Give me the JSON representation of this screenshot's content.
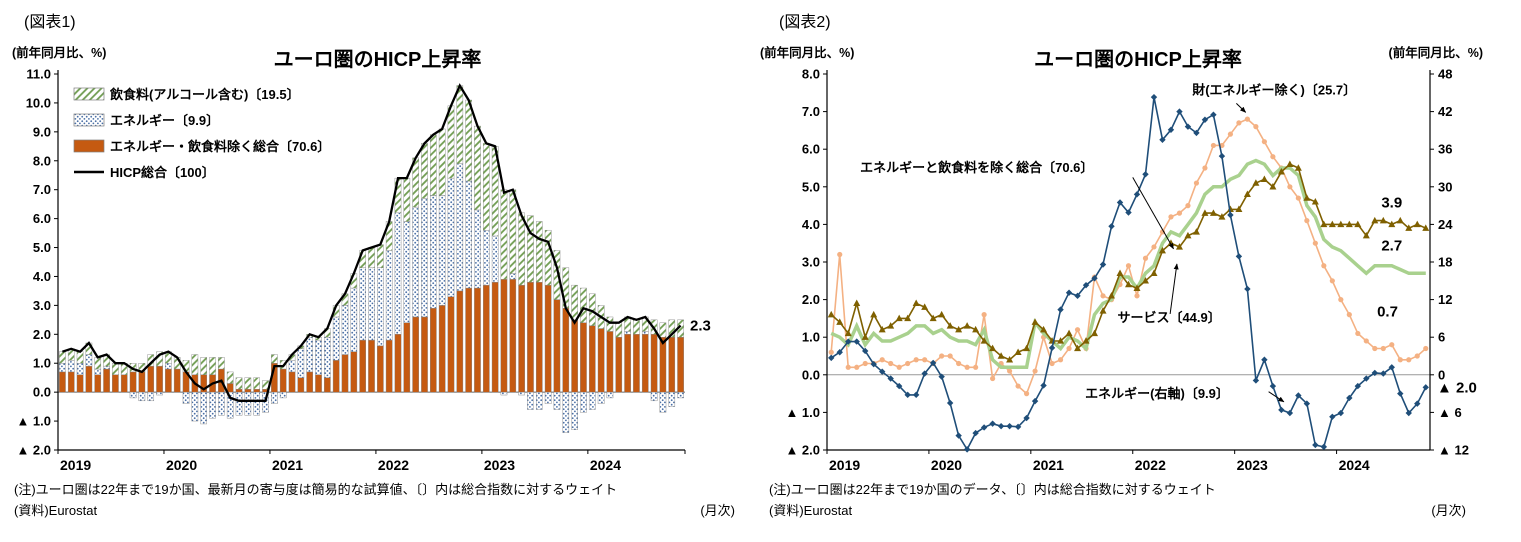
{
  "fig1": {
    "heading": "(図表1)",
    "axis_unit_left": "(前年同月比、%)",
    "note": "(注)ユーロ圏は22年まで19か国、最新月の寄与度は簡易的な試算値、〔〕内は総合指数に対するウェイト",
    "source": "(資料)Eurostat",
    "freq": "(月次)"
  },
  "fig2": {
    "heading": "(図表2)",
    "axis_unit_left": "(前年同月比、%)",
    "axis_unit_right": "(前年同月比、%)",
    "note": "(注)ユーロ圏は22年まで19か国のデータ、〔〕内は総合指数に対するウェイト",
    "source": "(資料)Eurostat",
    "freq": "(月次)"
  },
  "chart_data": [
    {
      "id": "fig1",
      "type": "bar",
      "subtype": "stacked-contribution-bars-with-line",
      "title": "ユーロ圏のHICP上昇率",
      "x_monthly_start": "2019-01",
      "x_monthly_end": "2024-11",
      "year_labels": [
        "2019",
        "2020",
        "2021",
        "2022",
        "2023",
        "2024"
      ],
      "ylim": [
        -2.0,
        11.0
      ],
      "ytick_step": 1.0,
      "grid": false,
      "legend_position": "inside-top-left",
      "end_label": "2.3",
      "end_label_value": 2.3,
      "stack_order": [
        2,
        1,
        0
      ],
      "line_series": 3,
      "colors": {
        "food_hatch": "#6f9c50",
        "energy_dots": "#4a6fa5",
        "core_bar": "#c55a11",
        "hicp_line": "#000000",
        "bar_border": "#7f7f7f"
      },
      "series": [
        {
          "name": "飲食料(アルコール含む)〔19.5〕",
          "role": "bar",
          "fill": "hatch",
          "values": [
            0.4,
            0.4,
            0.4,
            0.4,
            0.4,
            0.4,
            0.4,
            0.4,
            0.3,
            0.3,
            0.4,
            0.5,
            0.4,
            0.4,
            0.4,
            0.7,
            0.6,
            0.6,
            0.4,
            0.4,
            0.4,
            0.4,
            0.4,
            0.3,
            0.3,
            0.3,
            0.2,
            0.1,
            0.1,
            0.1,
            0.3,
            0.4,
            0.4,
            0.5,
            0.6,
            0.7,
            0.8,
            1.0,
            1.2,
            1.5,
            1.7,
            1.9,
            2.1,
            2.3,
            2.5,
            2.7,
            2.8,
            2.9,
            3.0,
            3.1,
            3.1,
            2.9,
            2.5,
            2.3,
            2.1,
            1.9,
            1.7,
            1.4,
            1.2,
            1.2,
            1.1,
            0.8,
            0.5,
            0.5,
            0.5,
            0.5,
            0.5,
            0.5,
            0.5,
            0.6,
            0.6
          ]
        },
        {
          "name": "エネルギー〔9.9〕",
          "role": "bar",
          "fill": "dots",
          "values": [
            0.3,
            0.4,
            0.4,
            0.4,
            0.2,
            0.1,
            0.0,
            0.0,
            -0.2,
            -0.3,
            -0.3,
            -0.1,
            0.2,
            0.0,
            -0.4,
            -1.0,
            -1.1,
            -0.9,
            -0.8,
            -0.9,
            -0.8,
            -0.8,
            -0.8,
            -0.7,
            -0.4,
            -0.2,
            0.4,
            1.0,
            1.2,
            1.2,
            1.4,
            1.5,
            1.7,
            2.2,
            2.5,
            2.5,
            2.7,
            3.1,
            4.2,
            3.5,
            3.8,
            4.1,
            3.9,
            3.8,
            4.1,
            4.4,
            3.7,
            2.7,
            1.9,
            1.6,
            -0.1,
            0.2,
            -0.1,
            -0.6,
            -0.6,
            -0.4,
            -0.6,
            -1.4,
            -1.3,
            -0.7,
            -0.6,
            -0.4,
            -0.2,
            0.0,
            0.1,
            0.0,
            0.1,
            -0.3,
            -0.7,
            -0.5,
            -0.2
          ]
        },
        {
          "name": "エネルギー・飲食料除く総合〔70.6〕",
          "role": "bar",
          "fill": "solid",
          "values": [
            0.7,
            0.7,
            0.6,
            0.9,
            0.6,
            0.8,
            0.6,
            0.6,
            0.7,
            0.7,
            0.9,
            0.9,
            0.8,
            0.8,
            0.7,
            0.6,
            0.6,
            0.6,
            0.8,
            0.3,
            0.1,
            0.1,
            0.1,
            0.1,
            1.0,
            0.8,
            0.7,
            0.5,
            0.7,
            0.6,
            0.5,
            1.1,
            1.3,
            1.4,
            1.8,
            1.8,
            1.6,
            1.8,
            2.0,
            2.4,
            2.6,
            2.6,
            2.9,
            3.0,
            3.3,
            3.5,
            3.6,
            3.6,
            3.7,
            3.8,
            3.9,
            3.9,
            3.7,
            3.8,
            3.8,
            3.7,
            3.2,
            2.9,
            2.5,
            2.4,
            2.3,
            2.2,
            2.1,
            1.9,
            2.0,
            2.0,
            2.0,
            2.0,
            1.9,
            1.9,
            1.9
          ]
        },
        {
          "name": "HICP総合〔100〕",
          "role": "line",
          "fill": "line",
          "values": [
            1.4,
            1.5,
            1.4,
            1.7,
            1.2,
            1.3,
            1.0,
            1.0,
            0.8,
            0.7,
            1.0,
            1.3,
            1.4,
            1.2,
            0.7,
            0.3,
            0.1,
            0.3,
            0.4,
            -0.2,
            -0.3,
            -0.3,
            -0.3,
            -0.3,
            0.9,
            0.9,
            1.3,
            1.6,
            2.0,
            1.9,
            2.2,
            3.0,
            3.4,
            4.1,
            4.9,
            5.0,
            5.1,
            5.9,
            7.4,
            7.4,
            8.1,
            8.6,
            8.9,
            9.1,
            9.9,
            10.6,
            10.1,
            9.2,
            8.6,
            8.5,
            6.9,
            7.0,
            6.1,
            5.5,
            5.3,
            5.2,
            4.3,
            2.9,
            2.4,
            2.9,
            2.8,
            2.6,
            2.4,
            2.4,
            2.6,
            2.5,
            2.6,
            2.2,
            1.7,
            2.0,
            2.3
          ]
        }
      ]
    },
    {
      "id": "fig2",
      "type": "line",
      "title": "ユーロ圏のHICP上昇率",
      "x_monthly_start": "2019-01",
      "x_monthly_end": "2024-11",
      "year_labels": [
        "2019",
        "2020",
        "2021",
        "2022",
        "2023",
        "2024"
      ],
      "ylim_left": [
        -2.0,
        8.0
      ],
      "ytick_step_left": 1.0,
      "ylim_right": [
        -12,
        48
      ],
      "ytick_step_right": 6,
      "right_to_left_ratio": 6,
      "grid": false,
      "series": [
        {
          "name": "財(エネルギー除く)〔25.7〕",
          "color": "#f4b183",
          "width": 1.6,
          "marker": "circle",
          "axis": "left",
          "values": [
            0.6,
            3.2,
            0.2,
            0.2,
            0.3,
            0.3,
            0.4,
            0.3,
            0.2,
            0.3,
            0.4,
            0.4,
            0.3,
            0.5,
            0.5,
            0.3,
            0.2,
            0.2,
            1.6,
            -0.1,
            0.3,
            0.1,
            -0.3,
            -0.5,
            0.1,
            1.0,
            0.3,
            0.4,
            0.7,
            1.2,
            0.7,
            2.6,
            2.1,
            2.0,
            2.4,
            2.9,
            2.1,
            3.1,
            3.4,
            3.8,
            4.2,
            4.3,
            4.5,
            5.1,
            5.5,
            6.1,
            6.1,
            6.4,
            6.7,
            6.8,
            6.6,
            6.2,
            5.8,
            5.5,
            5.0,
            4.7,
            4.1,
            3.5,
            2.9,
            2.5,
            2.0,
            1.6,
            1.1,
            0.9,
            0.7,
            0.7,
            0.8,
            0.4,
            0.4,
            0.5,
            0.7
          ]
        },
        {
          "name": "エネルギーと飲食料を除く総合〔70.6〕",
          "color": "#a9d18e",
          "width": 3.5,
          "marker": "none",
          "axis": "left",
          "values": [
            1.1,
            1.0,
            0.8,
            1.3,
            0.8,
            1.1,
            0.9,
            0.9,
            1.0,
            1.1,
            1.3,
            1.3,
            1.1,
            1.2,
            1.0,
            0.9,
            0.9,
            0.8,
            1.2,
            0.4,
            0.2,
            0.2,
            0.2,
            0.2,
            1.4,
            1.1,
            0.9,
            0.7,
            1.0,
            0.9,
            0.7,
            1.6,
            1.9,
            2.0,
            2.6,
            2.6,
            2.3,
            2.7,
            2.9,
            3.5,
            3.8,
            3.7,
            4.0,
            4.3,
            4.8,
            5.0,
            5.0,
            5.2,
            5.3,
            5.6,
            5.7,
            5.6,
            5.3,
            5.5,
            5.5,
            5.3,
            4.5,
            4.2,
            3.6,
            3.4,
            3.3,
            3.1,
            2.9,
            2.7,
            2.9,
            2.9,
            2.9,
            2.8,
            2.7,
            2.7,
            2.7
          ]
        },
        {
          "name": "サービス〔44.9〕",
          "color": "#7f6000",
          "width": 1.6,
          "marker": "triangle",
          "axis": "left",
          "values": [
            1.6,
            1.4,
            1.1,
            1.9,
            1.0,
            1.6,
            1.2,
            1.3,
            1.5,
            1.5,
            1.9,
            1.8,
            1.5,
            1.6,
            1.3,
            1.2,
            1.3,
            1.2,
            0.9,
            0.7,
            0.5,
            0.4,
            0.6,
            0.7,
            1.4,
            1.2,
            0.9,
            0.9,
            1.1,
            0.7,
            0.9,
            1.1,
            1.7,
            2.1,
            2.7,
            2.4,
            2.3,
            2.5,
            2.7,
            3.3,
            3.5,
            3.4,
            3.7,
            3.8,
            4.3,
            4.3,
            4.2,
            4.4,
            4.4,
            4.8,
            5.1,
            5.2,
            5.0,
            5.4,
            5.6,
            5.5,
            4.7,
            4.6,
            4.0,
            4.0,
            4.0,
            4.0,
            4.0,
            3.7,
            4.1,
            4.1,
            4.0,
            4.1,
            3.9,
            4.0,
            3.9
          ]
        },
        {
          "name": "エネルギー(右軸)〔9.9〕",
          "color": "#1f4e79",
          "width": 1.6,
          "marker": "diamond",
          "axis": "right",
          "values": [
            2.7,
            3.6,
            5.3,
            5.3,
            3.8,
            1.7,
            0.5,
            -0.6,
            -1.8,
            -3.2,
            -3.2,
            0.2,
            1.9,
            -0.3,
            -4.5,
            -9.7,
            -11.9,
            -9.3,
            -8.4,
            -7.8,
            -8.2,
            -8.2,
            -8.3,
            -6.9,
            -4.2,
            -1.7,
            4.3,
            10.4,
            13.1,
            12.6,
            14.3,
            15.4,
            17.6,
            23.7,
            27.5,
            25.9,
            28.8,
            32.0,
            44.3,
            37.5,
            39.1,
            42.0,
            39.6,
            38.6,
            40.7,
            41.5,
            34.9,
            25.5,
            18.9,
            13.7,
            -0.9,
            2.4,
            -1.8,
            -5.6,
            -6.1,
            -3.3,
            -4.6,
            -11.2,
            -11.5,
            -6.7,
            -6.1,
            -3.7,
            -1.8,
            -0.6,
            0.3,
            0.2,
            1.2,
            -3.0,
            -6.1,
            -4.6,
            -2.0
          ]
        }
      ],
      "annotations": [
        {
          "text": "財(エネルギー除く)〔25.7〕",
          "m": 43.0,
          "v": 7.45,
          "anchor": "start",
          "arrow": {
            "m1": 48.2,
            "v1": 7.22,
            "m2": 49.3,
            "v2": 6.98
          }
        },
        {
          "text": "エネルギーと飲食料を除く総合〔70.6〕",
          "m": 3.9,
          "v": 5.4,
          "anchor": "start",
          "arrow": {
            "m1": 36.0,
            "v1": 5.25,
            "m2": 40.8,
            "v2": 3.35
          }
        },
        {
          "text": "サービス〔44.9〕",
          "m": 34.2,
          "v": 1.4,
          "anchor": "start",
          "arrow": {
            "m1": 40.4,
            "v1": 1.62,
            "m2": 41.2,
            "v2": 2.95
          }
        },
        {
          "text": "エネルギー(右軸)〔9.9〕",
          "m": 30.4,
          "v": -0.62,
          "anchor": "start",
          "arrow": {
            "m1": 52.0,
            "v1": -0.45,
            "m2": 53.8,
            "v2": -0.72
          }
        }
      ],
      "end_labels": [
        {
          "text": "3.9",
          "m": 66.5,
          "v": 4.45
        },
        {
          "text": "2.7",
          "m": 66.5,
          "v": 3.3
        },
        {
          "text": "0.7",
          "m": 66.0,
          "v": 1.55
        }
      ],
      "right_end_label": {
        "text": "▲ 2.0",
        "value_right": -2.0
      }
    }
  ]
}
